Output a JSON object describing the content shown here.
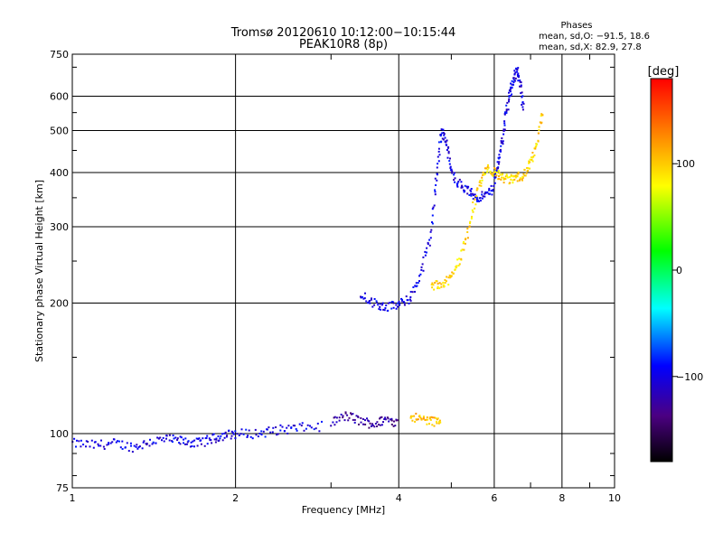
{
  "chart_data": {
    "type": "scatter",
    "title": "Tromsø 20120610 10:12:00−10:15:44",
    "subtitle": "PEAK10R8 (8p)",
    "phase_stats": {
      "heading": "Phases",
      "line_o": "mean, sd,O: −91.5, 18.6",
      "line_x": "mean, sd,X:  82.9, 27.8"
    },
    "xlabel": "Frequency [MHz]",
    "ylabel": "Stationary phase Virtual Height [km]",
    "x_scale": "log",
    "y_scale": "log",
    "xlim": [
      1,
      10
    ],
    "ylim": [
      75,
      750
    ],
    "x_ticks": [
      "1",
      "2",
      "4",
      "6",
      "8",
      "10"
    ],
    "x_tick_values": [
      1,
      2,
      4,
      6,
      8,
      10
    ],
    "y_ticks": [
      "75",
      "100",
      "200",
      "300",
      "400",
      "500",
      "600",
      "750"
    ],
    "y_tick_values": [
      75,
      100,
      200,
      300,
      400,
      500,
      600,
      750
    ],
    "grid": true,
    "colorbar": {
      "label": "[deg]",
      "range": [
        -180,
        180
      ],
      "ticks": [
        "100",
        "0",
        "−100"
      ],
      "tick_values": [
        100,
        0,
        -100
      ]
    },
    "series": [
      {
        "mode": "O",
        "segments": [
          {
            "x": [
              1.0,
              1.1,
              1.2,
              1.3,
              1.4,
              1.5,
              1.6,
              1.7,
              1.8,
              1.9,
              2.0,
              2.2,
              2.4,
              2.6,
              2.9
            ],
            "y": [
              95,
              94,
              95,
              93,
              96,
              97,
              96,
              95,
              97,
              99,
              100,
              100,
              102,
              103,
              104
            ],
            "phase": -100
          },
          {
            "x": [
              3.0,
              3.2,
              3.4,
              3.6,
              3.8,
              4.0
            ],
            "y": [
              106,
              110,
              107,
              105,
              108,
              106
            ],
            "phase": -125
          },
          {
            "x": [
              3.4,
              3.6,
              3.8,
              4.0,
              4.2,
              4.4,
              4.6,
              4.7,
              4.8,
              4.9,
              5.0,
              5.2,
              5.4,
              5.6,
              5.8,
              6.0
            ],
            "y": [
              210,
              200,
              196,
              198,
              205,
              235,
              290,
              400,
              500,
              470,
              400,
              375,
              360,
              350,
              355,
              370
            ],
            "phase": -100
          },
          {
            "x": [
              6.0,
              6.1,
              6.2,
              6.3,
              6.4,
              6.5,
              6.6,
              6.7,
              6.8
            ],
            "y": [
              380,
              420,
              470,
              540,
              600,
              650,
              690,
              640,
              560
            ],
            "phase": -100
          }
        ]
      },
      {
        "mode": "X",
        "segments": [
          {
            "x": [
              4.2,
              4.4,
              4.6,
              4.8
            ],
            "y": [
              110,
              108,
              107,
              106
            ],
            "phase": 105
          },
          {
            "x": [
              4.6,
              4.8,
              5.0,
              5.2,
              5.4,
              5.6,
              5.8,
              6.0,
              6.2,
              6.4,
              6.6,
              6.8,
              7.0,
              7.2,
              7.4
            ],
            "y": [
              218,
              222,
              228,
              255,
              300,
              370,
              410,
              400,
              390,
              385,
              390,
              395,
              420,
              470,
              560
            ],
            "phase": 95
          }
        ]
      }
    ]
  }
}
